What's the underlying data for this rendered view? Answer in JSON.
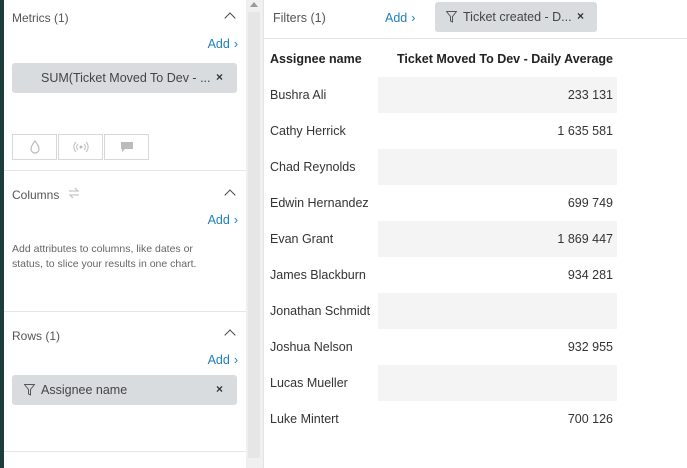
{
  "sidebar": {
    "metrics": {
      "title": "Metrics (1)",
      "add_label": "Add",
      "item": "SUM(Ticket Moved To Dev - ..."
    },
    "columns": {
      "title": "Columns",
      "add_label": "Add",
      "hint": "Add attributes to columns, like dates or status, to slice your results in one chart."
    },
    "rows": {
      "title": "Rows (1)",
      "add_label": "Add",
      "item": "Assignee name"
    }
  },
  "filters": {
    "label": "Filters (1)",
    "add_label": "Add",
    "chip": "Ticket created - D..."
  },
  "table": {
    "headers": [
      "Assignee name",
      "Ticket Moved To Dev - Daily Average"
    ],
    "rows": [
      [
        "Bushra Ali",
        "233 131"
      ],
      [
        "Cathy Herrick",
        "1 635 581"
      ],
      [
        "Chad Reynolds",
        ""
      ],
      [
        "Edwin Hernandez",
        "699 749"
      ],
      [
        "Evan Grant",
        "1 869 447"
      ],
      [
        "James Blackburn",
        "934 281"
      ],
      [
        "Jonathan Schmidt",
        ""
      ],
      [
        "Joshua Nelson",
        "932 955"
      ],
      [
        "Lucas Mueller",
        ""
      ],
      [
        "Luke Mintert",
        "700 126"
      ]
    ]
  },
  "icons": {
    "close": "×",
    "chevron_right": "›",
    "chevron_up": "chevron-up-icon",
    "swap": "swap-icon",
    "filter": "filter-icon"
  }
}
